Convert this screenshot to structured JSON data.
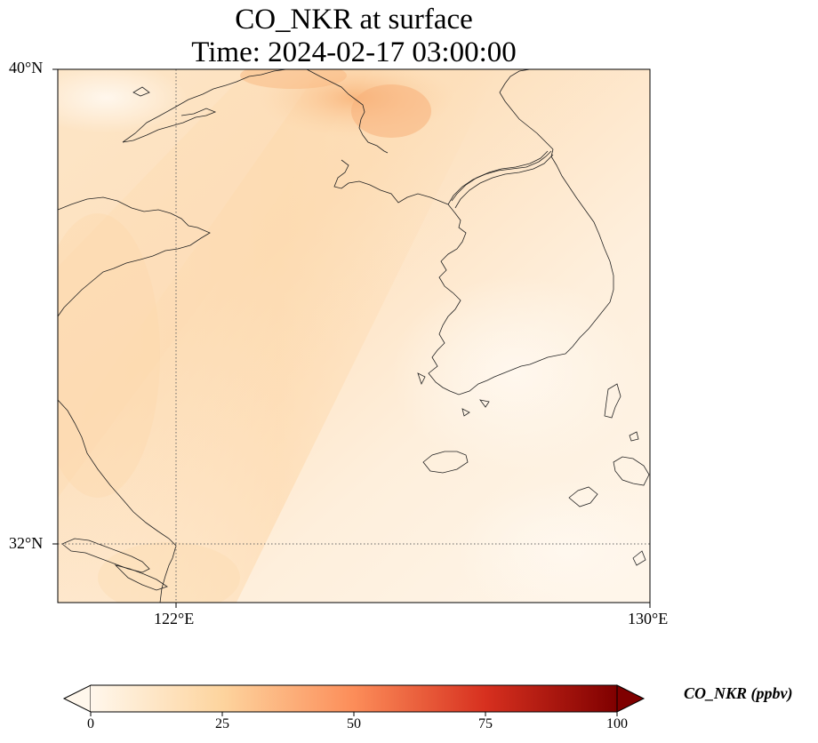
{
  "title": {
    "line1": "CO_NKR at surface",
    "line2": "Time: 2024-02-17 03:00:00"
  },
  "axes": {
    "lat_ticks": [
      "40°N",
      "32°N"
    ],
    "lon_ticks": [
      "122°E",
      "130°E"
    ],
    "gridlines": "dotted"
  },
  "colorbar": {
    "label": "CO_NKR (ppbv)",
    "ticks": [
      "0",
      "25",
      "50",
      "75",
      "100"
    ],
    "colormap": "Oranges/OrRd",
    "extend": "both",
    "colors": [
      "#fff7ec",
      "#fdd49e",
      "#fc8d59",
      "#d7301f",
      "#7f0000"
    ]
  },
  "map": {
    "projection": "PlateCarree",
    "extent": {
      "lon": [
        120,
        130
      ],
      "lat": [
        31,
        40
      ]
    },
    "coastline_color": "#000000"
  }
}
